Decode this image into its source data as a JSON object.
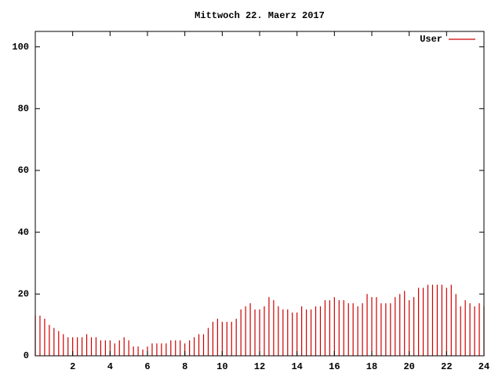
{
  "chart_data": {
    "type": "impulses",
    "title": "Mittwoch 22. Maerz 2017",
    "x": [
      0,
      0.25,
      0.5,
      0.75,
      1,
      1.25,
      1.5,
      1.75,
      2,
      2.25,
      2.5,
      2.75,
      3,
      3.25,
      3.5,
      3.75,
      4,
      4.25,
      4.5,
      4.75,
      5,
      5.25,
      5.5,
      5.75,
      6,
      6.25,
      6.5,
      6.75,
      7,
      7.25,
      7.5,
      7.75,
      8,
      8.25,
      8.5,
      8.75,
      9,
      9.25,
      9.5,
      9.75,
      10,
      10.25,
      10.5,
      10.75,
      11,
      11.25,
      11.5,
      11.75,
      12,
      12.25,
      12.5,
      12.75,
      13,
      13.25,
      13.5,
      13.75,
      14,
      14.25,
      14.5,
      14.75,
      15,
      15.25,
      15.5,
      15.75,
      16,
      16.25,
      16.5,
      16.75,
      17,
      17.25,
      17.5,
      17.75,
      18,
      18.25,
      18.5,
      18.75,
      19,
      19.25,
      19.5,
      19.75,
      20,
      20.25,
      20.5,
      20.75,
      21,
      21.25,
      21.5,
      21.75,
      22,
      22.25,
      22.5,
      22.75,
      23,
      23.25,
      23.5,
      23.75,
      24
    ],
    "series": [
      {
        "name": "User",
        "color": "#cc0000",
        "values": [
          13,
          13,
          12,
          10,
          9,
          8,
          7,
          6,
          6,
          6,
          6,
          7,
          6,
          6,
          5,
          5,
          5,
          4,
          5,
          6,
          5,
          3,
          3,
          2,
          3,
          4,
          4,
          4,
          4,
          5,
          5,
          5,
          4,
          5,
          6,
          7,
          7,
          9,
          11,
          12,
          11,
          11,
          11,
          12,
          15,
          16,
          17,
          15,
          15,
          16,
          19,
          18,
          16,
          15,
          15,
          14,
          14,
          16,
          15,
          15,
          16,
          16,
          18,
          18,
          19,
          18,
          18,
          17,
          17,
          16,
          17,
          20,
          19,
          19,
          17,
          17,
          17,
          19,
          20,
          21,
          18,
          19,
          22,
          22,
          23,
          23,
          23,
          23,
          22,
          23,
          20,
          16,
          18,
          17,
          16,
          17,
          16
        ]
      }
    ],
    "xlim": [
      0,
      24
    ],
    "xticks": [
      2,
      4,
      6,
      8,
      10,
      12,
      14,
      16,
      18,
      20,
      22,
      24
    ],
    "ylim": [
      0,
      105
    ],
    "yticks": [
      0,
      20,
      40,
      60,
      80,
      100
    ]
  }
}
